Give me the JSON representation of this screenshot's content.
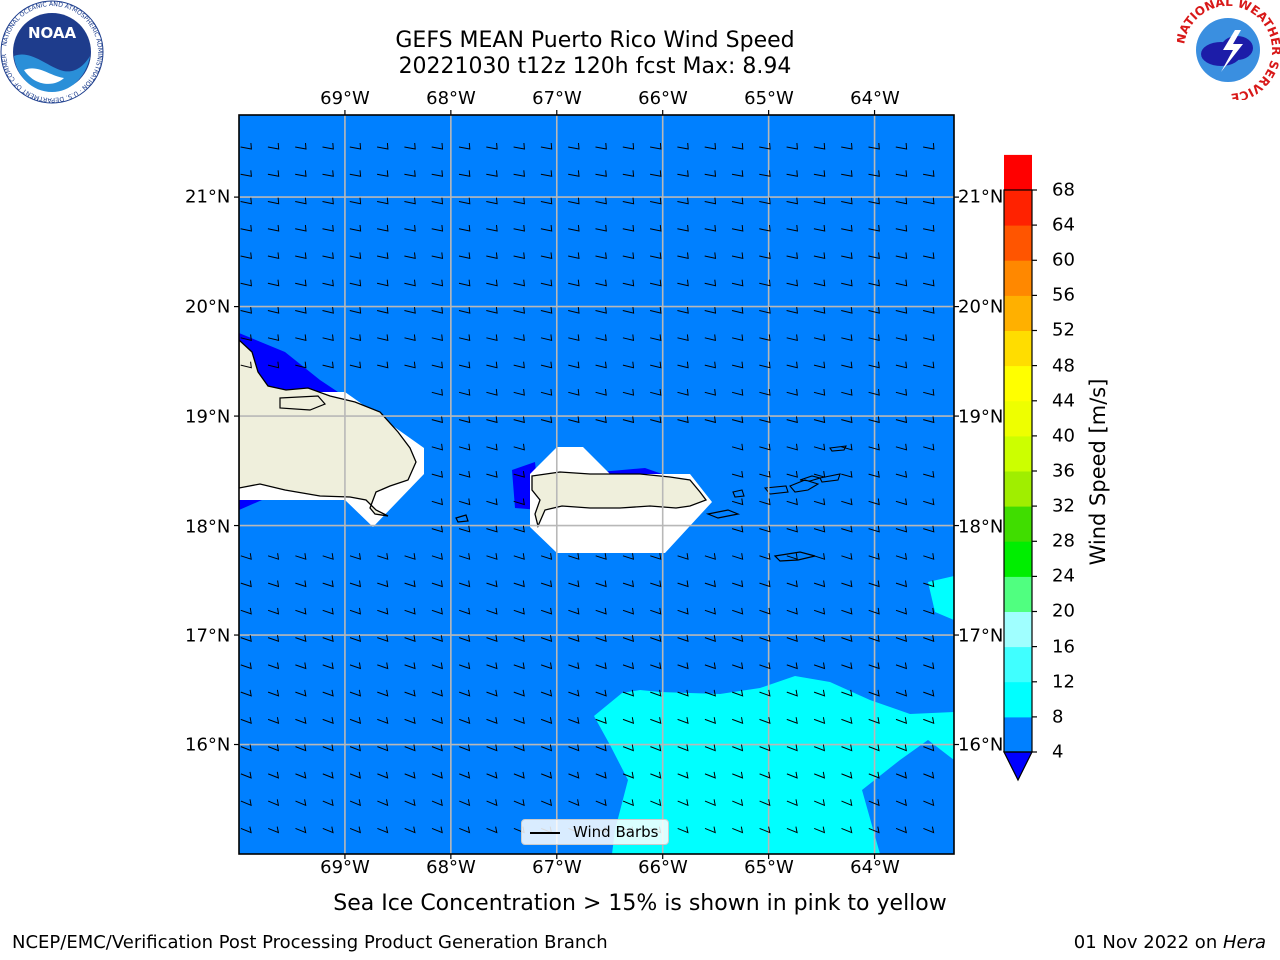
{
  "title": {
    "line1": "GEFS MEAN Puerto Rico Wind Speed",
    "line2": "20221030 t12z 120h fcst   Max: 8.94"
  },
  "map": {
    "lon_ticks": [
      "69°W",
      "68°W",
      "67°W",
      "66°W",
      "65°W",
      "64°W"
    ],
    "lon_values": [
      -69,
      -68,
      -67,
      -66,
      -65,
      -64
    ],
    "lat_ticks": [
      "21°N",
      "20°N",
      "19°N",
      "18°N",
      "17°N",
      "16°N"
    ],
    "lat_values": [
      21,
      20,
      19,
      18,
      17,
      16
    ],
    "lon_range": [
      -70.0,
      -63.25
    ],
    "lat_range": [
      15.0,
      21.75
    ],
    "ocean_color": "#0080ff",
    "land_color": "#efefdc",
    "gridlines": true
  },
  "legend": {
    "label": "Wind Barbs"
  },
  "colorbar": {
    "title": "Wind Speed [m/s]",
    "ticks": [
      "68",
      "64",
      "60",
      "56",
      "52",
      "48",
      "44",
      "40",
      "36",
      "32",
      "28",
      "24",
      "20",
      "16",
      "12",
      "8",
      "4"
    ],
    "levels": [
      4,
      8,
      12,
      16,
      20,
      24,
      28,
      32,
      36,
      40,
      44,
      48,
      52,
      56,
      60,
      64,
      68
    ],
    "colors": [
      "#0080ff",
      "#00ffff",
      "#40ffff",
      "#a0ffff",
      "#50ff80",
      "#00ee00",
      "#40dd00",
      "#a0ee00",
      "#ccff00",
      "#eeff00",
      "#ffff00",
      "#ffdd00",
      "#ffb000",
      "#ff8800",
      "#ff5500",
      "#ff2200",
      "#ff0000"
    ],
    "under_color": "#0000ff"
  },
  "note": "Sea Ice Concentration > 15% is shown in pink to yellow",
  "footer": {
    "left": "NCEP/EMC/Verification Post Processing Product Generation Branch",
    "right_date": "01 Nov 2022 on ",
    "right_host": "Hera"
  },
  "logos": {
    "noaa_text": "NOAA",
    "noaa_ring": "NATIONAL OCEANIC AND ATMOSPHERIC ADMINISTRATION · U.S. DEPARTMENT OF COMMERCE",
    "nws_ring": "NATIONAL WEATHER SERVICE"
  }
}
